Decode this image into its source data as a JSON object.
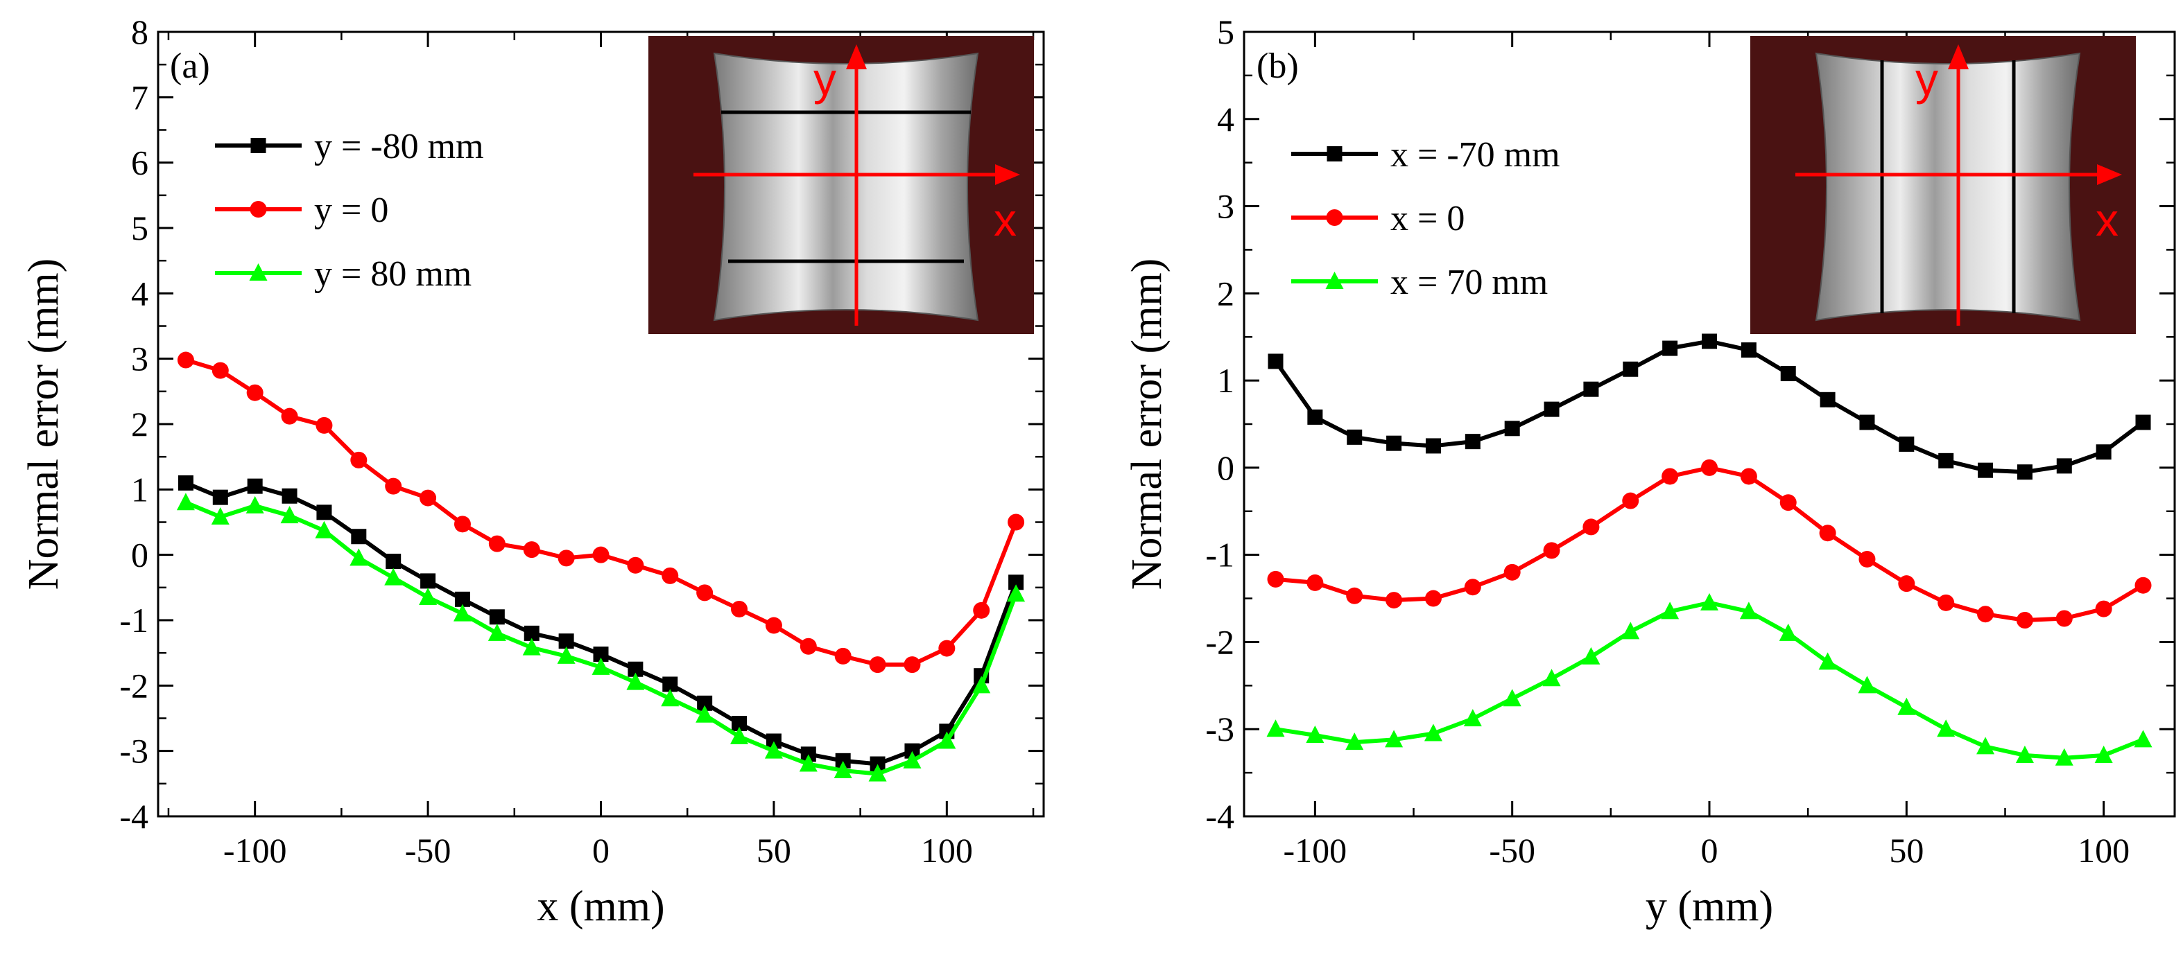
{
  "colors": {
    "black_series": "#000000",
    "red_series": "#ff0000",
    "green_series": "#00ff00",
    "inset_background": "#4a1212",
    "inset_arrow": "#ff0000"
  },
  "chart_data": [
    {
      "type": "line",
      "panel_label": "(a)",
      "xlabel": "x (mm)",
      "ylabel": "Normal error (mm)",
      "xlim": [
        -128,
        128
      ],
      "ylim": [
        -4,
        8
      ],
      "x_ticks": [
        -100,
        -50,
        0,
        50,
        100
      ],
      "x_tick_labels": [
        "-100",
        "-50",
        "0",
        "50",
        "100"
      ],
      "y_ticks": [
        -4,
        -3,
        -2,
        -1,
        0,
        1,
        2,
        3,
        4,
        5,
        6,
        7,
        8
      ],
      "y_tick_labels": [
        "-4",
        "-3",
        "-2",
        "-1",
        "0",
        "1",
        "2",
        "3",
        "4",
        "5",
        "6",
        "7",
        "8"
      ],
      "legend_position": "upper-left",
      "x": [
        -120,
        -110,
        -100,
        -90,
        -80,
        -70,
        -60,
        -50,
        -40,
        -30,
        -20,
        -10,
        0,
        10,
        20,
        30,
        40,
        50,
        60,
        70,
        80,
        90,
        100,
        110,
        120
      ],
      "series": [
        {
          "name": "y = -80 mm",
          "color": "#000000",
          "marker": "square",
          "values": [
            1.1,
            0.88,
            1.05,
            0.9,
            0.65,
            0.28,
            -0.1,
            -0.4,
            -0.68,
            -0.95,
            -1.2,
            -1.32,
            -1.52,
            -1.75,
            -1.98,
            -2.27,
            -2.58,
            -2.85,
            -3.05,
            -3.15,
            -3.2,
            -3.0,
            -2.7,
            -1.85,
            -0.42
          ]
        },
        {
          "name": "y = 0",
          "color": "#ff0000",
          "marker": "circle",
          "values": [
            2.98,
            2.82,
            2.48,
            2.12,
            1.98,
            1.45,
            1.05,
            0.87,
            0.47,
            0.17,
            0.08,
            -0.05,
            0.0,
            -0.16,
            -0.32,
            -0.58,
            -0.83,
            -1.08,
            -1.4,
            -1.55,
            -1.68,
            -1.68,
            -1.43,
            -0.85,
            0.5
          ]
        },
        {
          "name": "y = 80 mm",
          "color": "#00ff00",
          "marker": "triangle",
          "values": [
            0.8,
            0.58,
            0.75,
            0.6,
            0.37,
            -0.05,
            -0.35,
            -0.65,
            -0.9,
            -1.2,
            -1.42,
            -1.55,
            -1.72,
            -1.95,
            -2.2,
            -2.45,
            -2.78,
            -3.0,
            -3.2,
            -3.3,
            -3.35,
            -3.15,
            -2.85,
            -2.0,
            -0.6
          ]
        }
      ],
      "inset": {
        "vertical_axis_letter": "y",
        "horizontal_axis_letter": "x",
        "cut_lines": "horizontal"
      }
    },
    {
      "type": "line",
      "panel_label": "(b)",
      "xlabel": "y (mm)",
      "ylabel": "Normal error (mm)",
      "xlim": [
        -118,
        118
      ],
      "ylim": [
        -4,
        5
      ],
      "x_ticks": [
        -100,
        -50,
        0,
        50,
        100
      ],
      "x_tick_labels": [
        "-100",
        "-50",
        "0",
        "50",
        "100"
      ],
      "y_ticks": [
        -4,
        -3,
        -2,
        -1,
        0,
        1,
        2,
        3,
        4,
        5
      ],
      "y_tick_labels": [
        "-4",
        "-3",
        "-2",
        "-1",
        "0",
        "1",
        "2",
        "3",
        "4",
        "5"
      ],
      "legend_position": "upper-left",
      "x": [
        -110,
        -100,
        -90,
        -80,
        -70,
        -60,
        -50,
        -40,
        -30,
        -20,
        -10,
        0,
        10,
        20,
        30,
        40,
        50,
        60,
        70,
        80,
        90,
        100,
        110
      ],
      "series": [
        {
          "name": "x = -70 mm",
          "color": "#000000",
          "marker": "square",
          "values": [
            1.22,
            0.58,
            0.35,
            0.28,
            0.25,
            0.3,
            0.45,
            0.67,
            0.9,
            1.13,
            1.37,
            1.45,
            1.35,
            1.08,
            0.78,
            0.52,
            0.27,
            0.08,
            -0.03,
            -0.05,
            0.02,
            0.18,
            0.52
          ]
        },
        {
          "name": "x = 0",
          "color": "#ff0000",
          "marker": "circle",
          "values": [
            -1.28,
            -1.32,
            -1.47,
            -1.52,
            -1.5,
            -1.37,
            -1.2,
            -0.95,
            -0.68,
            -0.38,
            -0.1,
            0.0,
            -0.1,
            -0.4,
            -0.75,
            -1.05,
            -1.33,
            -1.55,
            -1.68,
            -1.75,
            -1.73,
            -1.62,
            -1.35
          ]
        },
        {
          "name": "x = 70 mm",
          "color": "#00ff00",
          "marker": "triangle",
          "values": [
            -3.0,
            -3.07,
            -3.15,
            -3.12,
            -3.05,
            -2.88,
            -2.65,
            -2.42,
            -2.17,
            -1.88,
            -1.65,
            -1.55,
            -1.65,
            -1.9,
            -2.23,
            -2.5,
            -2.75,
            -3.0,
            -3.2,
            -3.3,
            -3.33,
            -3.3,
            -3.12
          ]
        }
      ],
      "inset": {
        "vertical_axis_letter": "y",
        "horizontal_axis_letter": "x",
        "cut_lines": "vertical"
      }
    }
  ]
}
